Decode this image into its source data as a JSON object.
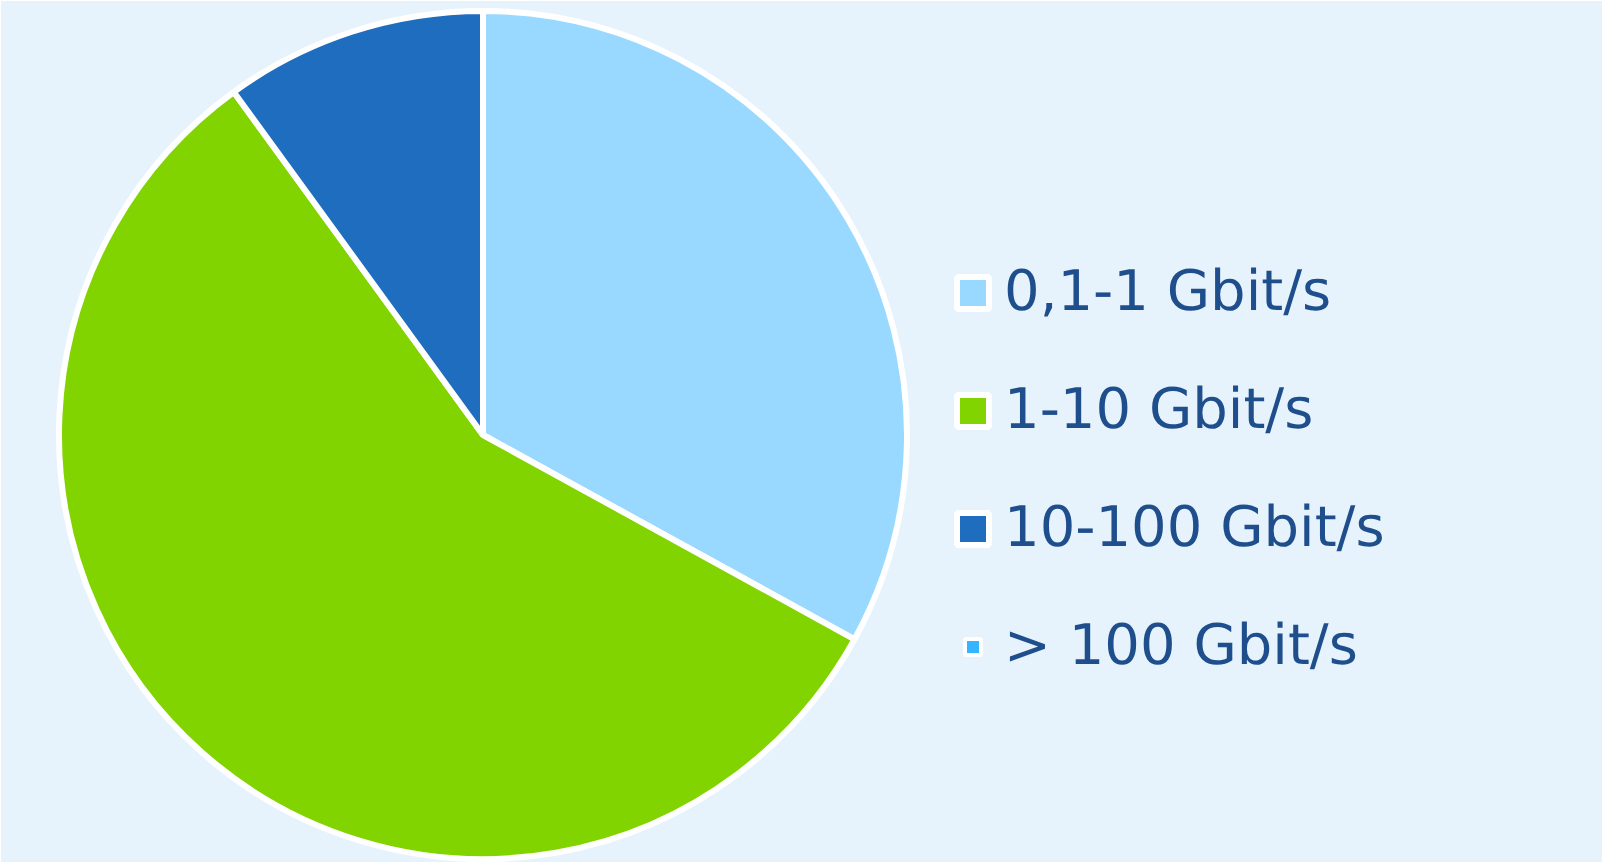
{
  "chart_data": {
    "type": "pie",
    "categories": [
      "0,1-1 Gbit/s",
      "1-10 Gbit/s",
      "10-100 Gbit/s",
      "> 100 Gbit/s"
    ],
    "values": [
      33,
      57,
      10,
      0
    ],
    "colors": [
      "#99d9ff",
      "#82d400",
      "#1f6dbf",
      "#33b5ff"
    ],
    "legend": "right"
  }
}
